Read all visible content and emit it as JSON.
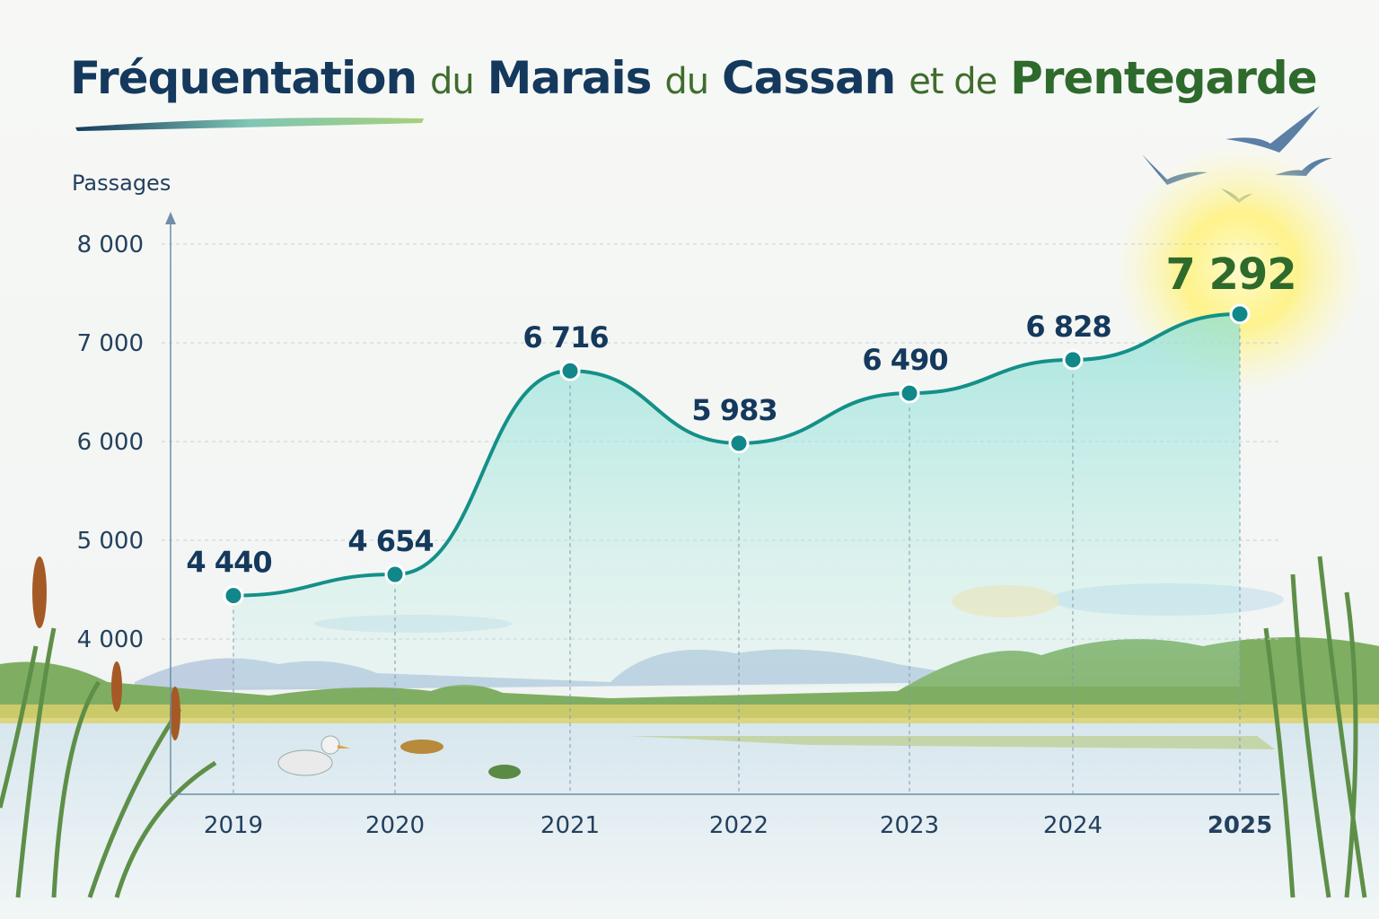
{
  "title_parts": [
    "Fréquentation",
    "du",
    "Marais",
    "du",
    "Cassan",
    "et de",
    "Prentegarde"
  ],
  "colors": {
    "navy": "#14395c",
    "green": "#2e6a2c",
    "line": "#149088",
    "fill": "#8fe0d6",
    "highlight_glow": "#fff07a"
  },
  "chart_data": {
    "type": "area",
    "title": "Fréquentation du Marais du Cassan et de Prentegarde",
    "xlabel": "",
    "ylabel": "Passages",
    "categories": [
      "2019",
      "2020",
      "2021",
      "2022",
      "2023",
      "2024",
      "2025"
    ],
    "values": [
      4440,
      4654,
      6716,
      5983,
      6490,
      6828,
      7292
    ],
    "data_labels": [
      "4 440",
      "4 654",
      "6 716",
      "5 983",
      "6 490",
      "6 828",
      "7 292"
    ],
    "y_ticks": [
      4000,
      5000,
      6000,
      7000,
      8000
    ],
    "y_tick_labels": [
      "4 000",
      "5 000",
      "6 000",
      "7 000",
      "8 000"
    ],
    "ylim": [
      2400,
      8000
    ],
    "grid": true,
    "highlight": "2025",
    "legend": "none"
  }
}
